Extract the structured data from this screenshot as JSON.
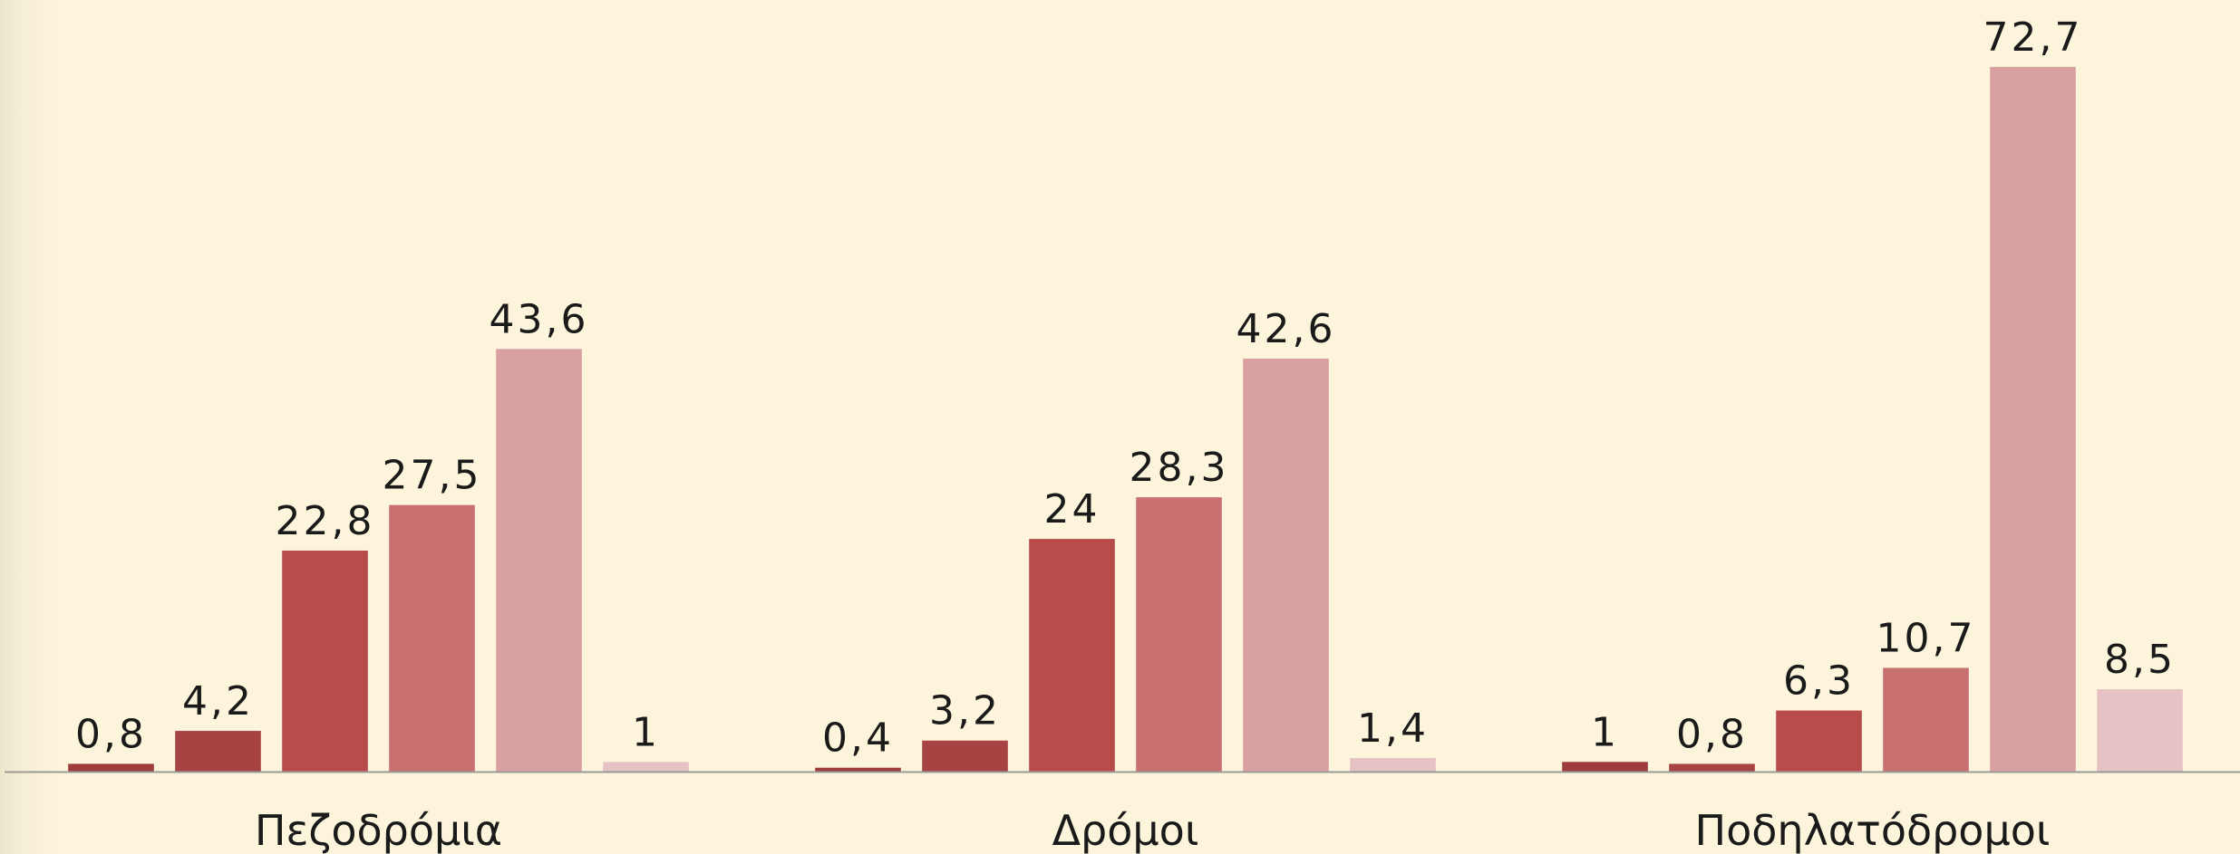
{
  "chart_data": {
    "type": "bar",
    "categories": [
      "Πεζοδρόμια",
      "Δρόμοι",
      "Ποδηλατόδρομοι"
    ],
    "series": [
      {
        "color": "#9e3b3b",
        "values": [
          0.8,
          0.4,
          1
        ],
        "value_labels": [
          "0,8",
          "0,4",
          "1"
        ]
      },
      {
        "color": "#a84343",
        "values": [
          4.2,
          3.2,
          0.8
        ],
        "value_labels": [
          "4,2",
          "3,2",
          "0,8"
        ]
      },
      {
        "color": "#b94b4b",
        "values": [
          22.8,
          24,
          6.3
        ],
        "value_labels": [
          "22,8",
          "24",
          "6,3"
        ]
      },
      {
        "color": "#c97070",
        "values": [
          27.5,
          28.3,
          10.7
        ],
        "value_labels": [
          "27,5",
          "28,3",
          "10,7"
        ]
      },
      {
        "color": "#d9a0a2",
        "values": [
          43.6,
          42.6,
          72.7
        ],
        "value_labels": [
          "43,6",
          "42,6",
          "72,7"
        ]
      },
      {
        "color": "#e6c2c5",
        "values": [
          1,
          1.4,
          8.5
        ],
        "value_labels": [
          "1",
          "1,4",
          "8,5"
        ]
      }
    ],
    "ylim": [
      0,
      79.6
    ]
  }
}
